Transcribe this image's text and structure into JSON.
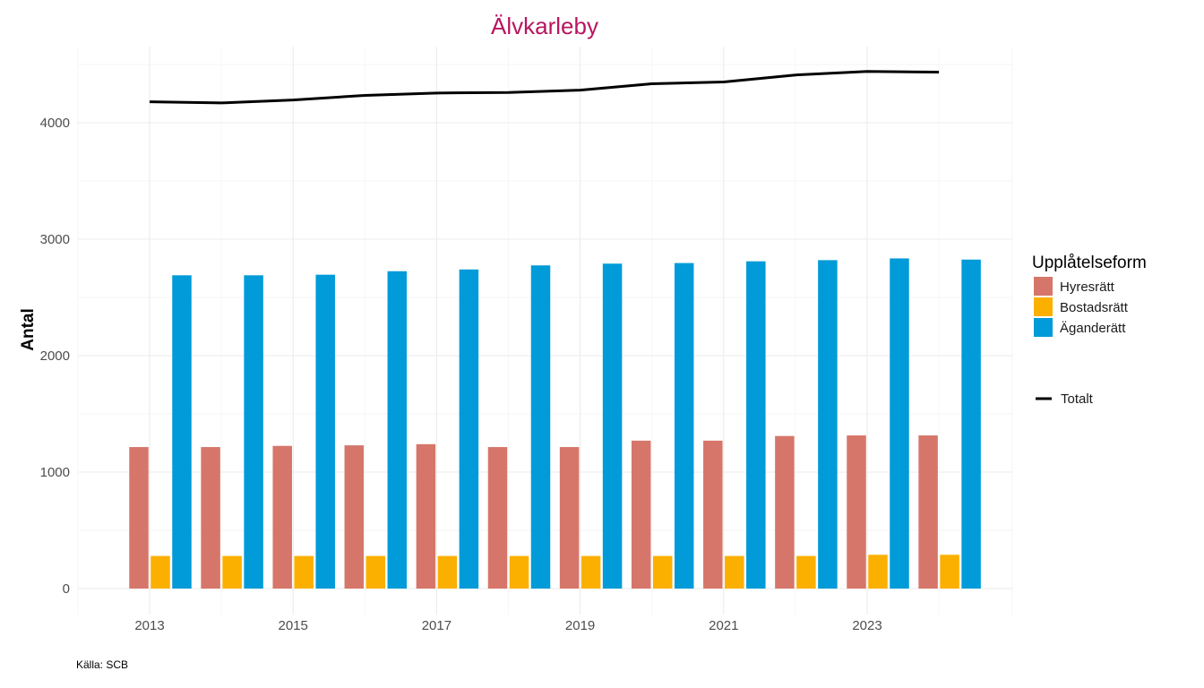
{
  "chart_data": {
    "type": "bar",
    "title": "Älvkarleby",
    "xlabel": "",
    "ylabel": "Antal",
    "caption": "Källa: SCB",
    "ylim": [
      -220,
      4650
    ],
    "y_ticks": [
      0,
      1000,
      2000,
      3000,
      4000
    ],
    "x_tick_labels": [
      "2013",
      "2015",
      "2017",
      "2019",
      "2021",
      "2023"
    ],
    "categories": [
      "2013",
      "2014",
      "2015",
      "2016",
      "2017",
      "2018",
      "2019",
      "2020",
      "2021",
      "2022",
      "2023",
      "2024"
    ],
    "series": [
      {
        "name": "Hyresrätt",
        "color": "#d6766a",
        "values": [
          1215,
          1215,
          1225,
          1230,
          1240,
          1215,
          1215,
          1270,
          1270,
          1310,
          1315,
          1315
        ]
      },
      {
        "name": "Bostadsrätt",
        "color": "#fbb000",
        "values": [
          280,
          280,
          280,
          280,
          280,
          280,
          280,
          280,
          280,
          280,
          290,
          290
        ]
      },
      {
        "name": "Äganderätt",
        "color": "#009bd8",
        "values": [
          2690,
          2690,
          2695,
          2725,
          2740,
          2775,
          2790,
          2795,
          2810,
          2820,
          2835,
          2825
        ]
      }
    ],
    "line": {
      "name": "Totalt",
      "color": "#000000",
      "values": [
        4180,
        4170,
        4195,
        4235,
        4255,
        4260,
        4280,
        4335,
        4350,
        4410,
        4440,
        4435
      ]
    },
    "legend": {
      "title": "Upplåtelseform",
      "position": "right"
    },
    "title_color": "#b8155f",
    "grid": true
  }
}
